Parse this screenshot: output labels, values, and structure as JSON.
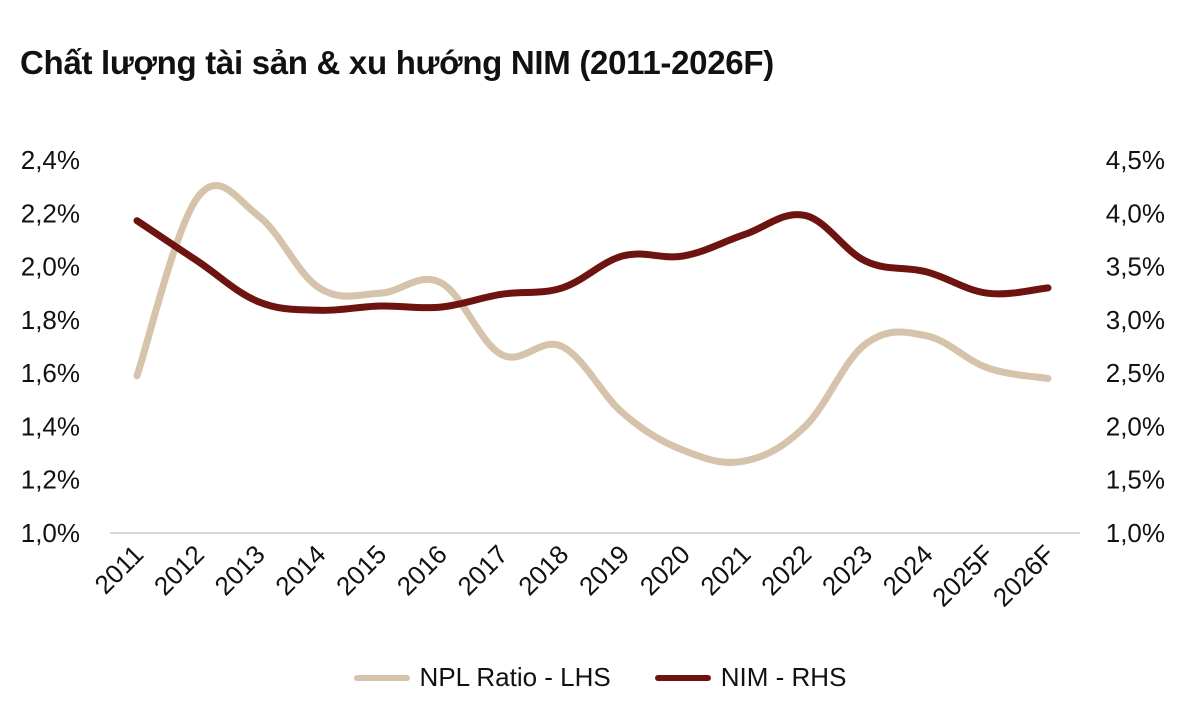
{
  "chart_data": {
    "type": "line",
    "title": "Chất lượng tài sản & xu hướng NIM (2011-2026F)",
    "categories": [
      "2011",
      "2012",
      "2013",
      "2014",
      "2015",
      "2016",
      "2017",
      "2018",
      "2019",
      "2020",
      "2021",
      "2022",
      "2023",
      "2024",
      "2025F",
      "2026F"
    ],
    "y_left": {
      "lim": [
        1.0,
        2.4
      ],
      "ticks": [
        "1,0%",
        "1,2%",
        "1,4%",
        "1,6%",
        "1,8%",
        "2,0%",
        "2,2%",
        "2,4%"
      ]
    },
    "y_right": {
      "lim": [
        1.0,
        4.5
      ],
      "ticks": [
        "1,0%",
        "1,5%",
        "2,0%",
        "2,5%",
        "3,0%",
        "3,5%",
        "4,0%",
        "4,5%"
      ]
    },
    "series": [
      {
        "name": "NPL Ratio - LHS",
        "axis": "left",
        "color": "#d6c3ab",
        "values": [
          1.59,
          2.26,
          2.19,
          1.92,
          1.9,
          1.94,
          1.67,
          1.7,
          1.45,
          1.31,
          1.27,
          1.4,
          1.71,
          1.74,
          1.62,
          1.58
        ]
      },
      {
        "name": "NIM - RHS",
        "axis": "right",
        "color": "#6e1410",
        "values": [
          3.93,
          3.55,
          3.17,
          3.09,
          3.13,
          3.12,
          3.24,
          3.3,
          3.6,
          3.6,
          3.8,
          3.98,
          3.55,
          3.45,
          3.25,
          3.3
        ]
      }
    ],
    "grid": false,
    "legend_position": "bottom"
  }
}
